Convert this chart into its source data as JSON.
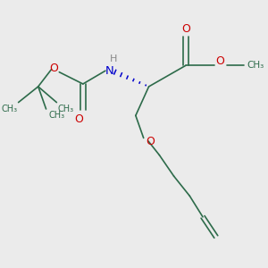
{
  "background_color": "#ebebeb",
  "bond_color": "#2d6b4a",
  "O_color": "#cc0000",
  "N_color": "#0000cc",
  "H_color": "#888888",
  "line_width": 1.2,
  "figsize": [
    3.0,
    3.0
  ],
  "dpi": 100,
  "xlim": [
    0,
    10
  ],
  "ylim": [
    0,
    10
  ]
}
